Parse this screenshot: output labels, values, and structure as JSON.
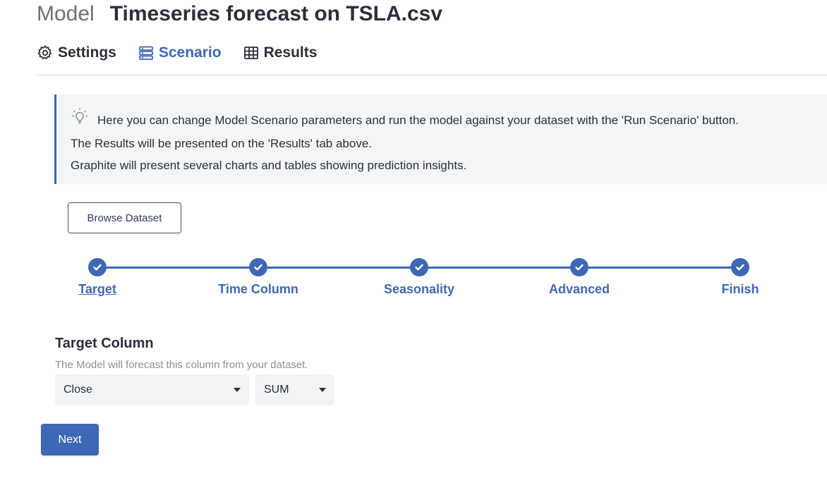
{
  "header": {
    "model_label": "Model",
    "title": "Timeseries forecast on TSLA.csv"
  },
  "tabs": [
    {
      "label": "Settings",
      "icon": "gear-icon",
      "active": false
    },
    {
      "label": "Scenario",
      "icon": "stack-icon",
      "active": true
    },
    {
      "label": "Results",
      "icon": "table-icon",
      "active": false
    }
  ],
  "info": {
    "icon": "lightbulb-icon",
    "lines": [
      "Here you can change Model Scenario parameters and run the model against your dataset with the 'Run Scenario' button.",
      "The Results will be presented on the 'Results' tab above.",
      "Graphite will present several charts and tables showing prediction insights."
    ]
  },
  "browse_button": "Browse Dataset",
  "stepper": {
    "steps": [
      {
        "label": "Target",
        "completed": true,
        "current": true
      },
      {
        "label": "Time Column",
        "completed": true,
        "current": false
      },
      {
        "label": "Seasonality",
        "completed": true,
        "current": false
      },
      {
        "label": "Advanced",
        "completed": true,
        "current": false
      },
      {
        "label": "Finish",
        "completed": true,
        "current": false
      }
    ]
  },
  "target_section": {
    "title": "Target Column",
    "description": "The Model will forecast this column from your dataset.",
    "column_value": "Close",
    "aggregation_value": "SUM"
  },
  "next_button": "Next",
  "colors": {
    "accent": "#3e68b5",
    "text": "#2b2f3a",
    "muted": "#8a8f98",
    "info_bg": "#f4f5f7"
  }
}
